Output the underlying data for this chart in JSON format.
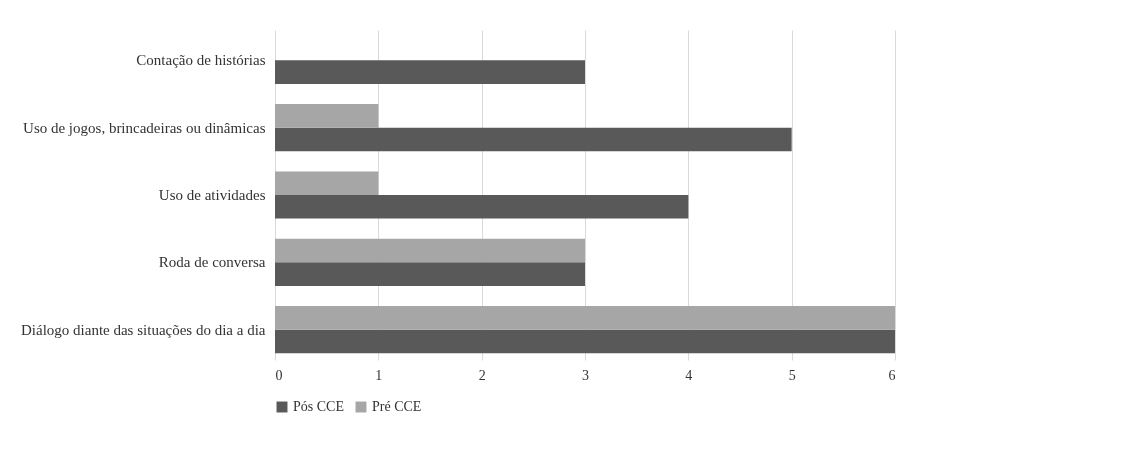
{
  "chart_data": {
    "type": "bar",
    "orientation": "horizontal",
    "categories": [
      "Contação de histórias",
      "Uso de jogos, brincadeiras ou dinâmicas",
      "Uso de atividades",
      "Roda de conversa",
      "Diálogo diante das situações do dia a dia"
    ],
    "series": [
      {
        "name": "Pós CCE",
        "color": "#595959",
        "values": [
          3,
          5,
          4,
          3,
          6
        ]
      },
      {
        "name": "Pré CCE",
        "color": "#a6a6a6",
        "values": [
          null,
          1,
          1,
          3,
          6
        ]
      }
    ],
    "xlim": [
      0,
      6
    ],
    "xticks": [
      0,
      1,
      2,
      3,
      4,
      5,
      6
    ],
    "grid": "x",
    "legend": "bottom"
  }
}
